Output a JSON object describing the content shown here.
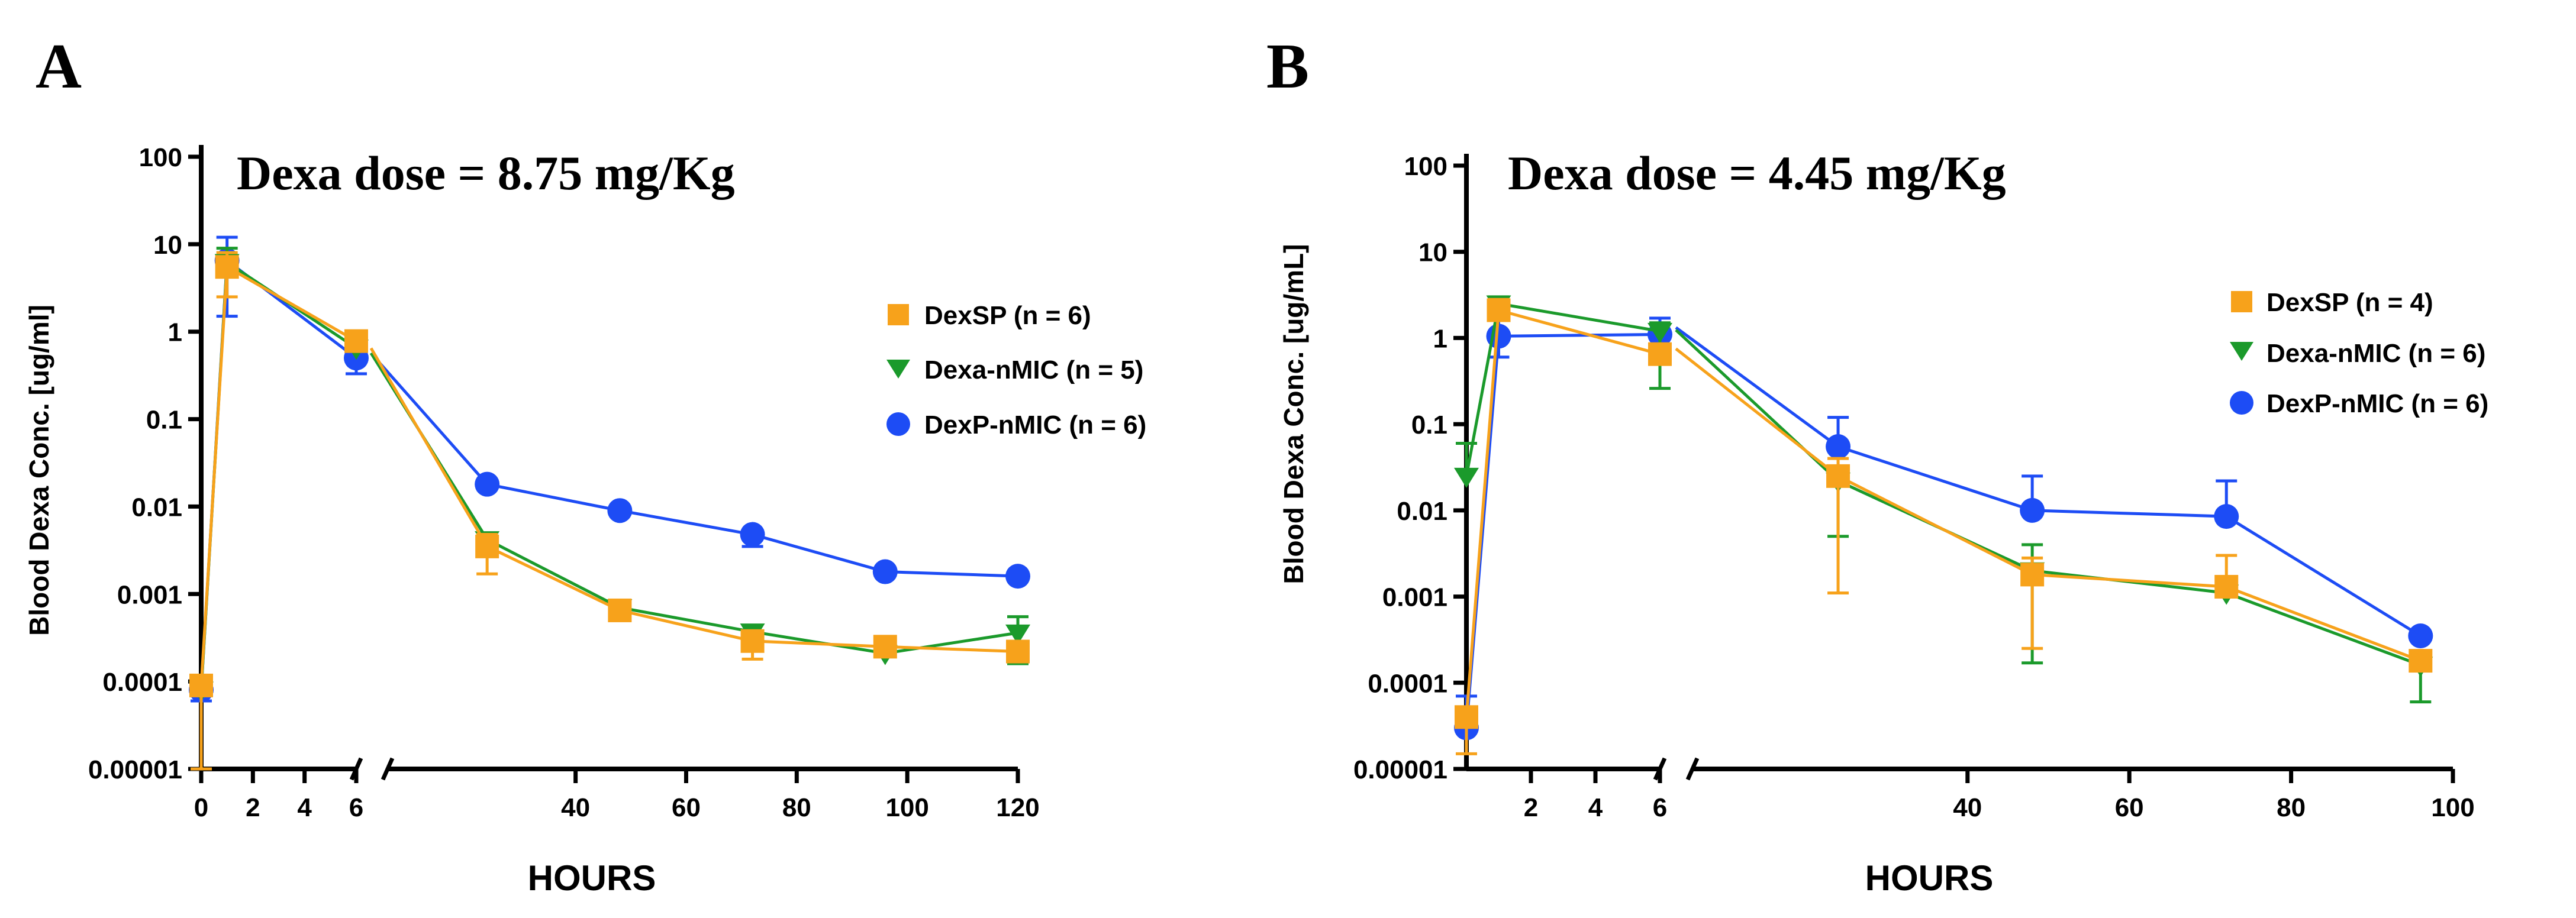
{
  "colors": {
    "DexSP": "#F7A21B",
    "Dexa-nMIC": "#1B9A2B",
    "DexP-nMIC": "#1D4CF5"
  },
  "chart_data": [
    {
      "type": "line",
      "panel_label": "A",
      "annotation": "Dexa dose = 8.75 mg/Kg",
      "xlabel": "HOURS",
      "ylabel": "Blood Dexa Conc. [ug/ml]",
      "y_scale": "log",
      "ylim": [
        1e-05,
        100
      ],
      "y_ticks": [
        "100",
        "10",
        "1",
        "0.1",
        "0.01",
        "0.001",
        "0.0001",
        "0.00001"
      ],
      "x_axis_broken": true,
      "x_segment1": {
        "range": [
          0,
          6
        ],
        "ticks": [
          "0",
          "2",
          "4",
          "6"
        ]
      },
      "x_segment2": {
        "range": [
          6,
          120
        ],
        "ticks": [
          "40",
          "60",
          "80",
          "100",
          "120"
        ]
      },
      "legend_position": "right",
      "series": [
        {
          "name": "DexP-nMIC (n = 6)",
          "marker": "circle",
          "color_key": "DexP-nMIC",
          "x": [
            0,
            1,
            6,
            24,
            48,
            72,
            96,
            120
          ],
          "y": [
            8e-05,
            6.5,
            0.5,
            0.018,
            0.009,
            0.0048,
            0.0018,
            0.0016
          ],
          "err_up": [
            0.0001,
            12,
            0.8,
            null,
            null,
            null,
            null,
            null
          ],
          "err_down": [
            6e-05,
            1.5,
            0.33,
            null,
            null,
            0.0035,
            null,
            null
          ]
        },
        {
          "name": "Dexa-nMIC (n = 5)",
          "marker": "triangle-down",
          "color_key": "Dexa-nMIC",
          "x": [
            0,
            1,
            6,
            24,
            48,
            72,
            96,
            120
          ],
          "y": [
            8e-05,
            6.2,
            0.65,
            0.0042,
            0.0007,
            0.00037,
            0.00021,
            0.00036
          ],
          "err_up": [
            null,
            9,
            null,
            0.005,
            0.0008,
            0.00044,
            null,
            0.00055
          ],
          "err_down": [
            null,
            null,
            null,
            null,
            null,
            null,
            null,
            0.00016
          ]
        },
        {
          "name": "DexSP (n = 6)",
          "marker": "square",
          "color_key": "DexSP",
          "x": [
            0,
            1,
            6,
            24,
            48,
            72,
            96,
            120
          ],
          "y": [
            9e-05,
            5.5,
            0.78,
            0.0035,
            0.00065,
            0.00029,
            0.00025,
            0.00022
          ],
          "err_up": [
            null,
            8,
            0.9,
            0.0048,
            null,
            0.00035,
            null,
            null
          ],
          "err_down": [
            1e-05,
            2.5,
            null,
            0.0017,
            null,
            0.00018,
            null,
            null
          ]
        }
      ]
    },
    {
      "type": "line",
      "panel_label": "B",
      "annotation": "Dexa dose = 4.45 mg/Kg",
      "xlabel": "HOURS",
      "ylabel": "Blood Dexa Conc. [ug/mL]",
      "y_scale": "log",
      "ylim": [
        1e-05,
        100
      ],
      "y_ticks": [
        "100",
        "10",
        "1",
        "0.1",
        "0.01",
        "0.001",
        "0.0001",
        "0.00001"
      ],
      "x_axis_broken": true,
      "x_segment1": {
        "range": [
          0,
          6
        ],
        "ticks": [
          "2",
          "4",
          "6"
        ]
      },
      "x_segment2": {
        "range": [
          6,
          100
        ],
        "ticks": [
          "40",
          "60",
          "80",
          "100"
        ]
      },
      "legend_position": "right",
      "series": [
        {
          "name": "DexP-nMIC (n = 6)",
          "marker": "circle",
          "color_key": "DexP-nMIC",
          "x": [
            0,
            1,
            6,
            24,
            48,
            72,
            96
          ],
          "y": [
            3e-05,
            1.05,
            1.1,
            0.055,
            0.01,
            0.0085,
            0.00035
          ],
          "err_up": [
            7e-05,
            1.6,
            1.7,
            0.12,
            0.025,
            0.022,
            null
          ],
          "err_down": [
            null,
            0.6,
            null,
            null,
            null,
            null,
            null
          ]
        },
        {
          "name": "Dexa-nMIC (n = 6)",
          "marker": "triangle-down",
          "color_key": "Dexa-nMIC",
          "x": [
            0,
            1,
            6,
            24,
            48,
            72,
            96
          ],
          "y": [
            0.025,
            2.5,
            1.2,
            0.022,
            0.002,
            0.0011,
            0.00016
          ],
          "err_up": [
            0.06,
            3.0,
            1.5,
            null,
            0.004,
            null,
            null
          ],
          "err_down": [
            null,
            null,
            0.26,
            0.005,
            0.00017,
            null,
            6e-05
          ]
        },
        {
          "name": "DexSP (n = 4)",
          "marker": "square",
          "color_key": "DexSP",
          "x": [
            0,
            1,
            6,
            24,
            48,
            72,
            96
          ],
          "y": [
            4e-05,
            2.1,
            0.65,
            0.025,
            0.0018,
            0.0013,
            0.00018
          ],
          "err_up": [
            null,
            2.8,
            0.8,
            0.04,
            0.0028,
            0.003,
            null
          ],
          "err_down": [
            1.5e-05,
            null,
            null,
            0.0011,
            0.00025,
            null,
            null
          ]
        }
      ]
    }
  ]
}
